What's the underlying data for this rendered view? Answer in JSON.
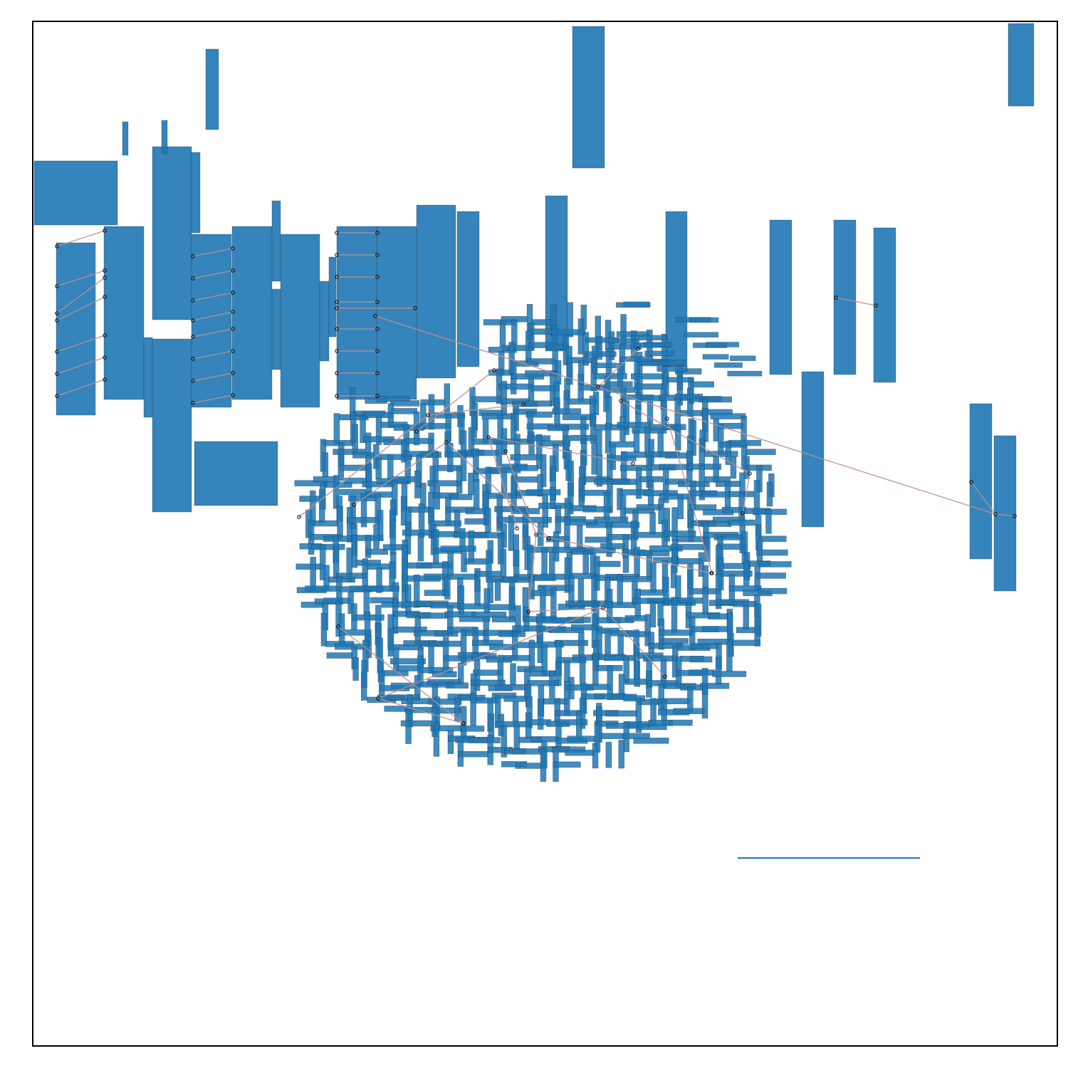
{
  "diagram": {
    "title": "",
    "style": {
      "node_fill": "#1f77b4",
      "node_edge": "#333333",
      "edge_color": "#bc8f8f",
      "endpoint_color": "#000000",
      "frame_color": "#000000"
    }
  }
}
